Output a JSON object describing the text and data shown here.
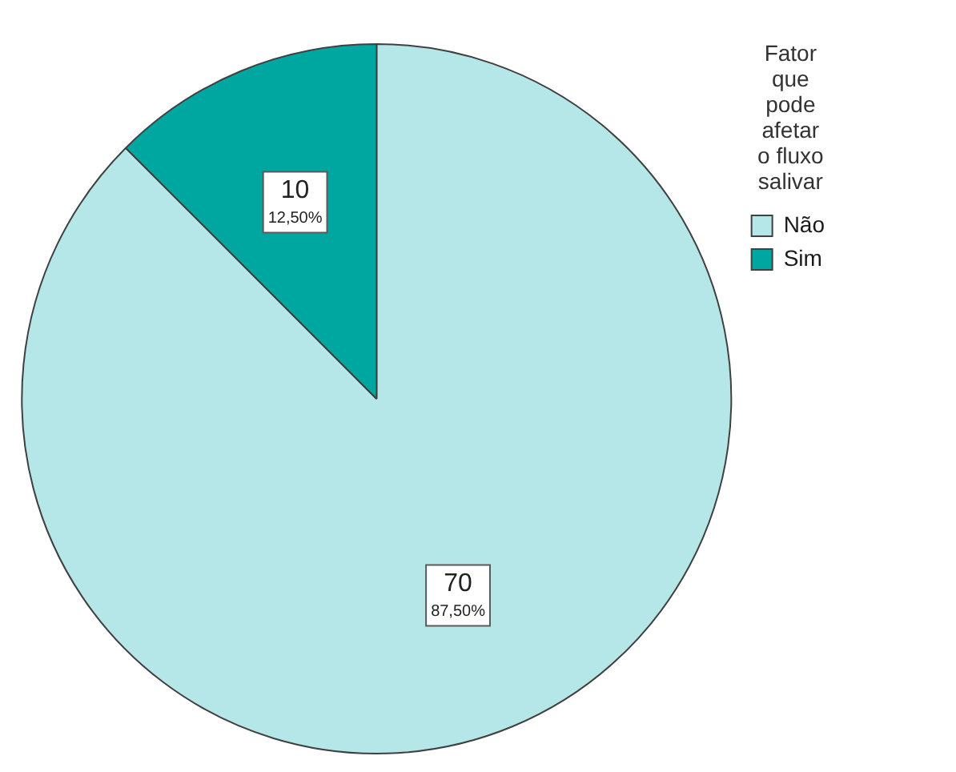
{
  "chart_data": {
    "type": "pie",
    "legend_title": "Fator que pode afetar o fluxo salivar",
    "categories": [
      "Não",
      "Sim"
    ],
    "values": [
      70,
      10
    ],
    "colors": [
      "#b5e6e8",
      "#00a6a0"
    ],
    "value_labels": [
      "70\n87,50%",
      "10\n12,50%"
    ],
    "legend": "top right"
  }
}
